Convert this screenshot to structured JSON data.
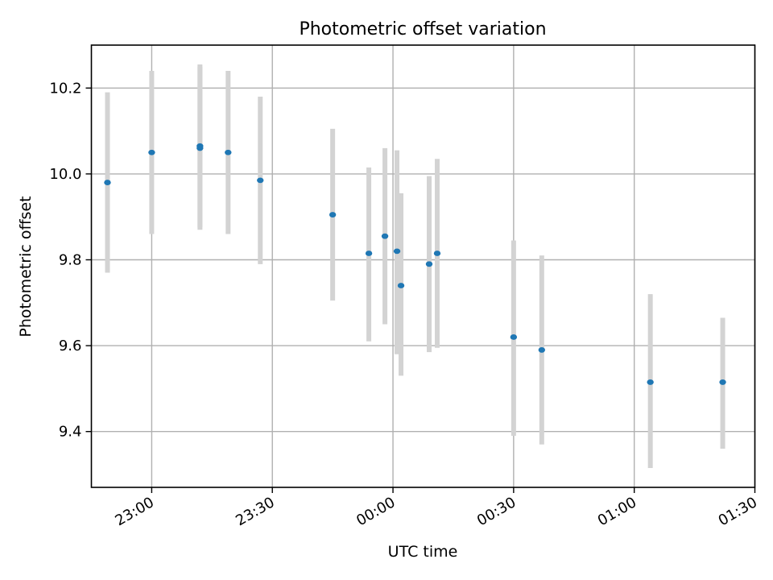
{
  "chart_data": {
    "type": "scatter",
    "title": "Photometric offset variation",
    "xlabel": "UTC time",
    "ylabel": "Photometric offset",
    "x_axis": {
      "kind": "time",
      "range": [
        "22:45",
        "01:30"
      ],
      "ticks": [
        "23:00",
        "23:30",
        "00:00",
        "00:30",
        "01:00",
        "01:30"
      ],
      "tick_label_rotation_deg": 30
    },
    "y_axis": {
      "range": [
        9.27,
        10.3
      ],
      "ticks": [
        9.4,
        9.6,
        9.8,
        10.0,
        10.2
      ],
      "tick_labels": [
        "9.4",
        "9.6",
        "9.8",
        "10.0",
        "10.2"
      ]
    },
    "grid": true,
    "legend": "none",
    "colors": {
      "points": "#1f77b4",
      "error_bars": "#d3d3d3",
      "grid": "#b0b0b0"
    },
    "points": [
      {
        "time": "22:49",
        "y": 9.98,
        "err_low": 9.77,
        "err_high": 10.19
      },
      {
        "time": "23:00",
        "y": 10.05,
        "err_low": 9.86,
        "err_high": 10.24
      },
      {
        "time": "23:12",
        "y": 10.065,
        "err_low": 9.875,
        "err_high": 10.255
      },
      {
        "time": "23:12",
        "y": 10.06,
        "err_low": 9.87,
        "err_high": 10.25
      },
      {
        "time": "23:19",
        "y": 10.05,
        "err_low": 9.86,
        "err_high": 10.24
      },
      {
        "time": "23:27",
        "y": 9.985,
        "err_low": 9.79,
        "err_high": 10.18
      },
      {
        "time": "23:45",
        "y": 9.905,
        "err_low": 9.705,
        "err_high": 10.105
      },
      {
        "time": "23:54",
        "y": 9.815,
        "err_low": 9.61,
        "err_high": 10.015
      },
      {
        "time": "23:58",
        "y": 9.855,
        "err_low": 9.65,
        "err_high": 10.06
      },
      {
        "time": "00:01",
        "y": 9.82,
        "err_low": 9.58,
        "err_high": 10.055
      },
      {
        "time": "00:02",
        "y": 9.74,
        "err_low": 9.53,
        "err_high": 9.955
      },
      {
        "time": "00:09",
        "y": 9.79,
        "err_low": 9.585,
        "err_high": 9.995
      },
      {
        "time": "00:11",
        "y": 9.815,
        "err_low": 9.595,
        "err_high": 10.035
      },
      {
        "time": "00:30",
        "y": 9.62,
        "err_low": 9.39,
        "err_high": 9.845
      },
      {
        "time": "00:37",
        "y": 9.59,
        "err_low": 9.37,
        "err_high": 9.81
      },
      {
        "time": "01:04",
        "y": 9.515,
        "err_low": 9.315,
        "err_high": 9.72
      },
      {
        "time": "01:22",
        "y": 9.515,
        "err_low": 9.36,
        "err_high": 9.665
      }
    ]
  }
}
